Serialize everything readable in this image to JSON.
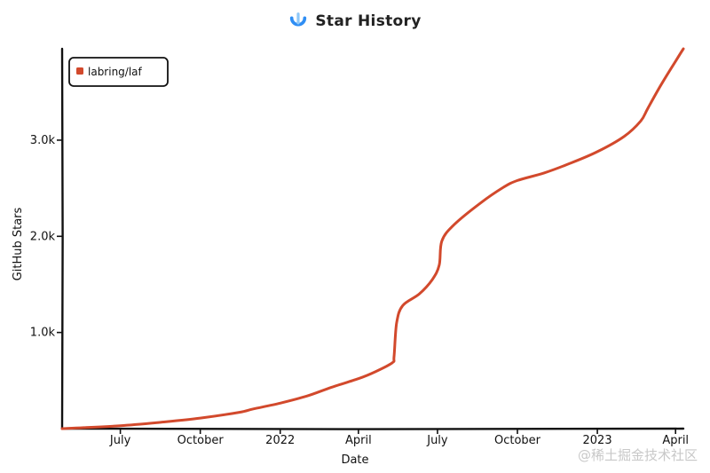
{
  "header": {
    "title": "Star History",
    "logo_icon": "star-history-logo-icon"
  },
  "watermark": "@稀土掘金技术社区",
  "colors": {
    "series": "#d2492c",
    "axis": "#111111",
    "logo_primary": "#2f8ef4",
    "logo_secondary": "#8fc8f8"
  },
  "chart_data": {
    "type": "line",
    "title": "Star History",
    "xlabel": "Date",
    "ylabel": "GitHub Stars",
    "xlim": [
      "2021-04-25",
      "2023-04-10"
    ],
    "ylim": [
      0,
      3950
    ],
    "grid": false,
    "legend_position": "top-left",
    "x_ticks": [
      {
        "date": "2021-07-01",
        "label": "July"
      },
      {
        "date": "2021-10-01",
        "label": "October"
      },
      {
        "date": "2022-01-01",
        "label": "2022"
      },
      {
        "date": "2022-04-01",
        "label": "April"
      },
      {
        "date": "2022-07-01",
        "label": "July"
      },
      {
        "date": "2022-10-01",
        "label": "October"
      },
      {
        "date": "2023-01-01",
        "label": "2023"
      },
      {
        "date": "2023-04-01",
        "label": "April"
      }
    ],
    "y_ticks": [
      {
        "value": 1000,
        "label": "1.0k"
      },
      {
        "value": 2000,
        "label": "2.0k"
      },
      {
        "value": 3000,
        "label": "3.0k"
      }
    ],
    "series": [
      {
        "name": "labring/laf",
        "color": "#d2492c",
        "points": [
          {
            "x": "2021-04-25",
            "y": 0
          },
          {
            "x": "2021-05-20",
            "y": 10
          },
          {
            "x": "2021-07-01",
            "y": 30
          },
          {
            "x": "2021-08-15",
            "y": 65
          },
          {
            "x": "2021-10-01",
            "y": 110
          },
          {
            "x": "2021-11-15",
            "y": 170
          },
          {
            "x": "2021-12-01",
            "y": 205
          },
          {
            "x": "2022-01-01",
            "y": 265
          },
          {
            "x": "2022-02-01",
            "y": 340
          },
          {
            "x": "2022-03-01",
            "y": 430
          },
          {
            "x": "2022-04-01",
            "y": 520
          },
          {
            "x": "2022-04-20",
            "y": 590
          },
          {
            "x": "2022-05-10",
            "y": 685
          },
          {
            "x": "2022-05-12",
            "y": 750
          },
          {
            "x": "2022-05-15",
            "y": 1100
          },
          {
            "x": "2022-05-22",
            "y": 1280
          },
          {
            "x": "2022-06-10",
            "y": 1400
          },
          {
            "x": "2022-06-25",
            "y": 1550
          },
          {
            "x": "2022-07-03",
            "y": 1700
          },
          {
            "x": "2022-07-06",
            "y": 1950
          },
          {
            "x": "2022-07-20",
            "y": 2120
          },
          {
            "x": "2022-08-20",
            "y": 2350
          },
          {
            "x": "2022-09-15",
            "y": 2510
          },
          {
            "x": "2022-10-01",
            "y": 2580
          },
          {
            "x": "2022-11-01",
            "y": 2660
          },
          {
            "x": "2022-12-01",
            "y": 2760
          },
          {
            "x": "2023-01-01",
            "y": 2880
          },
          {
            "x": "2023-02-01",
            "y": 3040
          },
          {
            "x": "2023-02-20",
            "y": 3200
          },
          {
            "x": "2023-02-28",
            "y": 3330
          },
          {
            "x": "2023-03-15",
            "y": 3570
          },
          {
            "x": "2023-04-01",
            "y": 3820
          },
          {
            "x": "2023-04-10",
            "y": 3950
          }
        ]
      }
    ]
  }
}
